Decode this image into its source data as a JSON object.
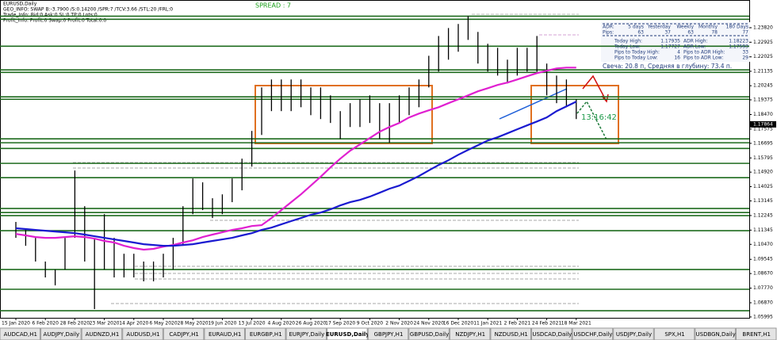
{
  "chart_data": {
    "type": "ohlc",
    "title": "EURUSD,Daily",
    "info_lines": [
      "GEO_INFO: SWAP B:-3.7900 /S:0.14200 /SPR:7 /TCV:3.66 /STL:20 /FRL:0",
      "Trade_Info: Bid:0 Ask:0 SL:0 TP:0 Lots:0",
      "Profit_Info: Profit:0 Swap:0 Profit:0 Total:0.0"
    ],
    "spread": "SPREAD : 7",
    "timer": "13:16:42",
    "categories": [
      "15 Jan 2020",
      null,
      null,
      "6 Feb 2020",
      null,
      null,
      "28 Feb 2020",
      null,
      null,
      "23 Mar 2020",
      null,
      null,
      "14 Apr 2020",
      null,
      null,
      "6 May 2020",
      null,
      null,
      "28 May 2020",
      null,
      null,
      "19 Jun 2020",
      null,
      null,
      "13 Jul 2020",
      null,
      null,
      "4 Aug 2020",
      null,
      null,
      "26 Aug 2020",
      null,
      null,
      "17 Sep 2020",
      null,
      null,
      "9 Oct 2020",
      null,
      null,
      "2 Nov 2020",
      null,
      null,
      "24 Nov 2020",
      null,
      null,
      "16 Dec 2020",
      null,
      null,
      "11 Jan 2021",
      null,
      null,
      "2 Feb 2021",
      null,
      null,
      "24 Feb 2021",
      null,
      null,
      "18 Mar 2021"
    ],
    "high": [
      1.1185,
      1.1136,
      1.1087,
      1.0941,
      1.0892,
      1.1087,
      1.1502,
      1.1282,
      1.1087,
      1.1233,
      1.1087,
      1.0989,
      1.0989,
      1.0941,
      1.0941,
      1.0989,
      1.1087,
      1.1282,
      1.1453,
      1.1429,
      1.1331,
      1.1355,
      1.1453,
      1.1575,
      1.1746,
      1.2014,
      1.2063,
      1.2063,
      1.2063,
      1.2063,
      1.2014,
      1.2014,
      1.1965,
      1.1868,
      1.1917,
      1.1941,
      1.1965,
      1.1917,
      1.1917,
      1.1965,
      1.2014,
      1.2063,
      1.2209,
      1.2331,
      1.238,
      1.2405,
      1.2453,
      1.2356,
      1.2283,
      1.2258,
      1.2185,
      1.2258,
      1.2258,
      1.2331,
      1.2161,
      1.2087,
      1.2063,
      1.1941
    ],
    "low": [
      1.1087,
      1.1038,
      1.0941,
      1.0843,
      1.0794,
      1.0892,
      1.1087,
      1.0941,
      1.0648,
      1.0892,
      1.0843,
      1.0843,
      1.0843,
      1.0819,
      1.0819,
      1.0843,
      1.0892,
      1.1038,
      1.1233,
      1.1258,
      1.1209,
      1.1233,
      1.1307,
      1.138,
      1.1526,
      1.1721,
      1.1868,
      1.1868,
      1.1868,
      1.1892,
      1.1843,
      1.1819,
      1.1795,
      1.1697,
      1.177,
      1.177,
      1.1795,
      1.1697,
      1.1673,
      1.1795,
      1.1843,
      1.1892,
      1.2014,
      1.2112,
      1.2185,
      1.2234,
      1.2307,
      1.2161,
      1.2112,
      1.2087,
      1.2039,
      1.2087,
      1.2112,
      1.2112,
      1.1965,
      1.1917,
      1.1892,
      1.1819
    ],
    "lines": [
      {
        "color": "#e020d0",
        "values": [
          1.1111,
          1.1102,
          1.1092,
          1.1087,
          1.1087,
          1.1092,
          1.1097,
          1.1092,
          1.1082,
          1.1068,
          1.1058,
          1.1038,
          1.1024,
          1.1014,
          1.1019,
          1.1033,
          1.1043,
          1.1058,
          1.1072,
          1.1092,
          1.1107,
          1.1121,
          1.1136,
          1.1146,
          1.116,
          1.1165,
          1.1209,
          1.1258,
          1.1307,
          1.1355,
          1.1409,
          1.1463,
          1.1521,
          1.1575,
          1.1624,
          1.1663,
          1.1702,
          1.1741,
          1.177,
          1.1795,
          1.1829,
          1.1853,
          1.1873,
          1.1892,
          1.1917,
          1.1941,
          1.1965,
          1.199,
          1.2009,
          1.2029,
          1.2044,
          1.2063,
          1.2083,
          1.2102,
          1.2117,
          1.2131,
          1.2136,
          1.2136
        ]
      },
      {
        "color": "#1a1ad0",
        "values": [
          1.1146,
          1.1141,
          1.1136,
          1.1131,
          1.1126,
          1.1121,
          1.1116,
          1.1107,
          1.1097,
          1.1087,
          1.1077,
          1.1068,
          1.1058,
          1.1048,
          1.1043,
          1.1038,
          1.1038,
          1.1043,
          1.1048,
          1.1058,
          1.1068,
          1.1077,
          1.1087,
          1.1102,
          1.1116,
          1.1136,
          1.115,
          1.117,
          1.119,
          1.1209,
          1.1229,
          1.1243,
          1.1263,
          1.1287,
          1.1307,
          1.1321,
          1.1341,
          1.1365,
          1.139,
          1.1409,
          1.1438,
          1.1468,
          1.1502,
          1.1536,
          1.1565,
          1.1599,
          1.1629,
          1.1658,
          1.1687,
          1.1707,
          1.1731,
          1.1756,
          1.178,
          1.1804,
          1.1829,
          1.1868,
          1.1897,
          1.1926
        ]
      }
    ],
    "levels": [
      1.2453,
      1.2434,
      1.2268,
      1.2122,
      1.2107,
      1.1956,
      1.1941,
      1.1697,
      1.1673,
      1.1638,
      1.1546,
      1.1458,
      1.1268,
      1.1243,
      1.1224,
      1.1131,
      1.0892,
      1.077,
      1.0638
    ],
    "level_color": "#1e6b1e",
    "last_price": 1.17864,
    "ylim": [
      1.056,
      1.2543
    ],
    "yticks": [
      1.05995,
      {
        "value": 1.0687,
        "label": "1.06870"
      },
      {
        "value": 1.0777,
        "label": "1.07770"
      },
      {
        "value": 1.0867,
        "label": "1.08670"
      },
      1.09545,
      {
        "value": 1.1047,
        "label": "1.10470"
      },
      1.11345,
      1.12245,
      1.13145,
      1.14025,
      {
        "value": 1.1492,
        "label": "1.14920"
      },
      1.15795,
      1.16695,
      1.17575,
      {
        "value": 1.1847,
        "label": "1.18470"
      },
      1.19375,
      1.20245,
      1.21135,
      1.22025,
      1.22925,
      {
        "value": 1.2382,
        "label": "1.23820"
      }
    ],
    "grid": false
  },
  "info_panel": {
    "header": [
      "ADR:",
      "5 days",
      "Yesterday",
      "Weekly",
      "Monthly",
      "180 Days"
    ],
    "pips": [
      "Pips:",
      "63",
      "37",
      "63",
      "78",
      "77"
    ],
    "rows": [
      [
        "Today High:",
        "1.17935",
        "ADR High:",
        "1.18223"
      ],
      [
        "Today Low:",
        "1.17727",
        "ADR Low:",
        "1.17593"
      ],
      [
        "Pips to Today High:",
        "4",
        "Pips to ADR High:",
        "33"
      ],
      [
        "Pips to Today Low:",
        "16",
        "Pips to ADR Low:",
        "29"
      ]
    ],
    "candle": "Свеча: 20.8 п, Средняя в глубину: 73.4 п."
  },
  "tabs": [
    "AUDCAD,H1",
    "AUDJPY,Daily",
    "AUDNZD,H1",
    "AUDUSD,H1",
    "CADJPY,H1",
    "EURAUD,H1",
    "EURGBP,H1",
    "EURJPY,Daily",
    "EURUSD,Daily",
    "GBPJPY,H1",
    "GBPUSD,Daily",
    "NZDJPY,H1",
    "NZDUSD,H1",
    "USDCAD,Daily",
    "USDCHF,Daily",
    "USDJPY,Daily",
    "SPX,H1",
    "USDBGN,Daily",
    "BRENT,H1"
  ]
}
